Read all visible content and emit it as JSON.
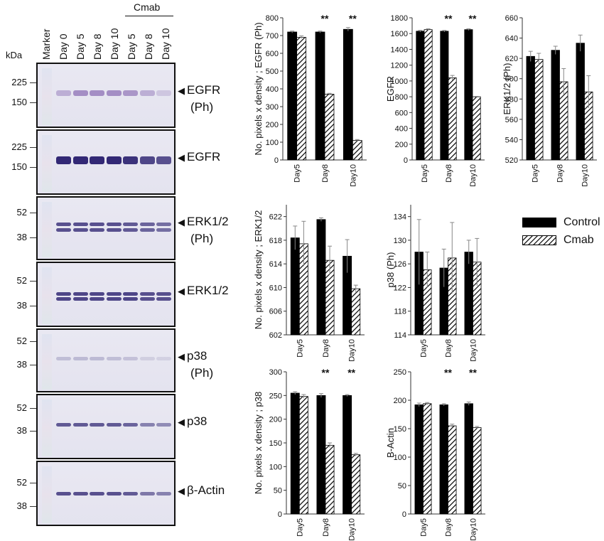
{
  "blots": {
    "kda_label": "kDa",
    "lanes": [
      "Marker",
      "Day 0",
      "Day 5",
      "Day 8",
      "Day 10",
      "Day 5",
      "Day 8",
      "Day 10"
    ],
    "cmab_label": "Cmab",
    "panels": [
      {
        "protein": "EGFR",
        "ph": "(Ph)",
        "mw_upper": "225",
        "mw_lower": "150",
        "band_intensity": [
          0.35,
          0.55,
          0.55,
          0.55,
          0.5,
          0.35,
          0.2
        ]
      },
      {
        "protein": "EGFR",
        "ph": "",
        "mw_upper": "225",
        "mw_lower": "150",
        "band_intensity": [
          0.95,
          0.95,
          0.95,
          0.95,
          0.9,
          0.8,
          0.75
        ]
      },
      {
        "protein": "ERK1/2",
        "ph": "(Ph)",
        "mw_upper": "52",
        "mw_lower": "38",
        "band_intensity": [
          0.75,
          0.75,
          0.75,
          0.75,
          0.7,
          0.65,
          0.6
        ]
      },
      {
        "protein": "ERK1/2",
        "ph": "",
        "mw_upper": "52",
        "mw_lower": "38",
        "band_intensity": [
          0.8,
          0.8,
          0.8,
          0.8,
          0.8,
          0.75,
          0.75
        ]
      },
      {
        "protein": "p38",
        "ph": "(Ph)",
        "mw_upper": "52",
        "mw_lower": "38",
        "band_intensity": [
          0.2,
          0.22,
          0.22,
          0.2,
          0.18,
          0.12,
          0.1
        ]
      },
      {
        "protein": "p38",
        "ph": "",
        "mw_upper": "52",
        "mw_lower": "38",
        "band_intensity": [
          0.7,
          0.7,
          0.7,
          0.7,
          0.65,
          0.5,
          0.45
        ]
      },
      {
        "protein": "β-Actin",
        "ph": "",
        "mw_upper": "52",
        "mw_lower": "38",
        "band_intensity": [
          0.75,
          0.75,
          0.75,
          0.75,
          0.7,
          0.55,
          0.5
        ]
      }
    ]
  },
  "legend": {
    "control_label": "Control",
    "cmab_label": "Cmab",
    "control_color": "#000000",
    "cmab_pattern": "diagonal-hatch"
  },
  "colors": {
    "control": "#000000",
    "cmab_hatch": "#000000",
    "axis": "#333333"
  },
  "chart_data": [
    {
      "type": "bar",
      "ylabel": "No. pixels x density ; EGFR (Ph)",
      "ylim": [
        0,
        800
      ],
      "yticks": [
        "0",
        "100",
        "200",
        "300",
        "400",
        "500",
        "600",
        "700",
        "800"
      ],
      "categories": [
        "Day5",
        "Day8",
        "Day10"
      ],
      "series": [
        {
          "name": "Control",
          "values": [
            720,
            720,
            735
          ],
          "errors": [
            5,
            5,
            10
          ]
        },
        {
          "name": "Cmab",
          "values": [
            690,
            370,
            110
          ],
          "errors": [
            8,
            5,
            5
          ]
        }
      ],
      "annotations": [
        "",
        "**",
        "**"
      ]
    },
    {
      "type": "bar",
      "ylabel": "EGFR",
      "ylim": [
        0,
        1800
      ],
      "yticks": [
        "0",
        "200",
        "400",
        "600",
        "800",
        "1000",
        "1200",
        "1400",
        "1600",
        "1800"
      ],
      "categories": [
        "Day5",
        "Day8",
        "Day10"
      ],
      "series": [
        {
          "name": "Control",
          "values": [
            1630,
            1630,
            1650
          ],
          "errors": [
            10,
            10,
            10
          ]
        },
        {
          "name": "Cmab",
          "values": [
            1650,
            1040,
            800
          ],
          "errors": [
            10,
            30,
            5
          ]
        }
      ],
      "annotations": [
        "",
        "**",
        "**"
      ]
    },
    {
      "type": "bar",
      "ylabel": "ERK1/2 (Ph)",
      "ylim": [
        520,
        660
      ],
      "yticks": [
        "520",
        "540",
        "560",
        "580",
        "600",
        "620",
        "640",
        "660"
      ],
      "categories": [
        "Day5",
        "Day8",
        "Day10"
      ],
      "series": [
        {
          "name": "Control",
          "values": [
            622,
            628,
            635
          ],
          "errors": [
            5,
            4,
            8
          ]
        },
        {
          "name": "Cmab",
          "values": [
            619,
            597,
            587
          ],
          "errors": [
            6,
            13,
            16
          ]
        }
      ],
      "annotations": [
        "",
        "",
        ""
      ]
    },
    {
      "type": "bar",
      "ylabel": "No. pixels x density ; ERK1/2",
      "ylim": [
        602,
        624
      ],
      "yticks": [
        "602",
        "606",
        "610",
        "614",
        "618",
        "622"
      ],
      "categories": [
        "Day5",
        "Day8",
        "Day10"
      ],
      "series": [
        {
          "name": "Control",
          "values": [
            618.4,
            621.5,
            615.3
          ],
          "errors": [
            2.0,
            0.3,
            2.8
          ]
        },
        {
          "name": "Cmab",
          "values": [
            617.4,
            614.6,
            609.8
          ],
          "errors": [
            3.8,
            2.4,
            0.6
          ]
        }
      ],
      "annotations": [
        "",
        "",
        ""
      ]
    },
    {
      "type": "bar",
      "ylabel": "p38 (Ph)",
      "ylim": [
        114,
        136
      ],
      "yticks": [
        "114",
        "118",
        "122",
        "126",
        "130",
        "134"
      ],
      "categories": [
        "Day5",
        "Day8",
        "Day10"
      ],
      "series": [
        {
          "name": "Control",
          "values": [
            128,
            125.3,
            128
          ],
          "errors": [
            5.5,
            3.2,
            2
          ]
        },
        {
          "name": "Cmab",
          "values": [
            125,
            127,
            126.3
          ],
          "errors": [
            3,
            6,
            4
          ]
        }
      ],
      "annotations": [
        "",
        "",
        ""
      ]
    },
    {
      "type": "bar",
      "ylabel": "No. pixels x density ; p38",
      "ylim": [
        0,
        300
      ],
      "yticks": [
        "0",
        "50",
        "100",
        "150",
        "200",
        "250",
        "300"
      ],
      "categories": [
        "Day5",
        "Day8",
        "Day10"
      ],
      "series": [
        {
          "name": "Control",
          "values": [
            255,
            250,
            250
          ],
          "errors": [
            3,
            4,
            2
          ]
        },
        {
          "name": "Cmab",
          "values": [
            248,
            145,
            125
          ],
          "errors": [
            4,
            5,
            3
          ]
        }
      ],
      "annotations": [
        "",
        "**",
        "**"
      ]
    },
    {
      "type": "bar",
      "ylabel": "B-Actin",
      "ylim": [
        0,
        250
      ],
      "yticks": [
        "0",
        "50",
        "100",
        "150",
        "200",
        "250"
      ],
      "categories": [
        "Day5",
        "Day8",
        "Day10"
      ],
      "series": [
        {
          "name": "Control",
          "values": [
            192,
            192,
            194
          ],
          "errors": [
            3,
            2,
            3
          ]
        },
        {
          "name": "Cmab",
          "values": [
            194,
            155,
            152
          ],
          "errors": [
            2,
            3,
            2
          ]
        }
      ],
      "annotations": [
        "",
        "**",
        "**"
      ]
    }
  ]
}
